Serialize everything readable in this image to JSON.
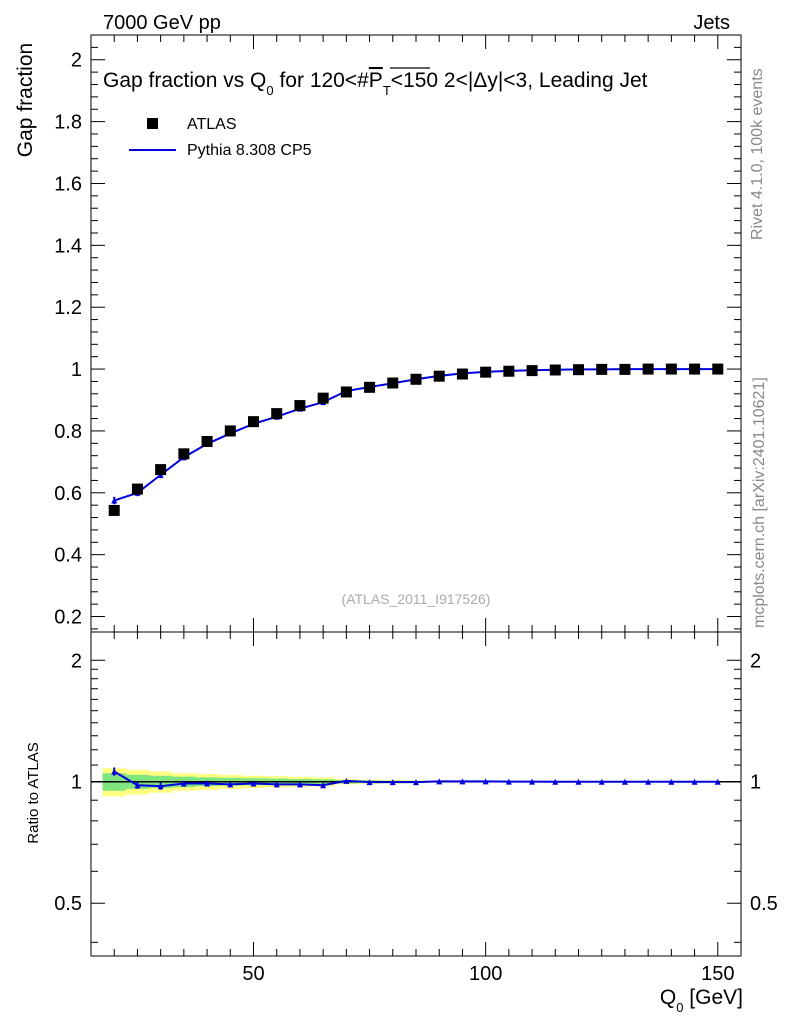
{
  "header": {
    "left": "7000 GeV pp",
    "right": "Jets"
  },
  "side": {
    "rivet": "Rivet 4.1.0,  100k events",
    "mcplots": "mcplots.cern.ch [arXiv:2401.10621]"
  },
  "colors": {
    "data": "#000000",
    "mc": "#0000dd",
    "band_inner": "#7fe57f",
    "band_outer": "#ffff80"
  },
  "chart_data": [
    {
      "type": "scatter",
      "panel": "main",
      "title": "Gap fraction vs Q₀ for 120<#P̅T<150  2<|Δy|<3, Leading Jet",
      "title_parts": [
        "Gap fraction vs Q",
        "0",
        " for 120<#",
        "P",
        "T",
        "<150  2<|Δy|<3, Leading Jet"
      ],
      "ylabel": "Gap fraction",
      "xlim": [
        15,
        155
      ],
      "ylim": [
        0.15,
        2.08
      ],
      "yticks": [
        0.2,
        0.4,
        0.6,
        0.8,
        1,
        1.2,
        1.4,
        1.6,
        1.8,
        2
      ],
      "ytick_labels": [
        "0.2",
        "0.4",
        "0.6",
        "0.8",
        "1",
        "1.2",
        "1.4",
        "1.6",
        "1.8",
        "2"
      ],
      "annotation": "(ATLAS_2011_I917526)",
      "legend": [
        "ATLAS",
        "Pythia 8.308 CP5"
      ],
      "legend_position": "top-left",
      "x": [
        20,
        25,
        30,
        35,
        40,
        45,
        50,
        55,
        60,
        65,
        70,
        75,
        80,
        85,
        90,
        95,
        100,
        105,
        110,
        115,
        120,
        125,
        130,
        135,
        140,
        145,
        150
      ],
      "series": [
        {
          "name": "ATLAS",
          "values": [
            0.543,
            0.612,
            0.675,
            0.726,
            0.766,
            0.8,
            0.83,
            0.856,
            0.882,
            0.906,
            0.926,
            0.941,
            0.955,
            0.967,
            0.977,
            0.984,
            0.99,
            0.993,
            0.995,
            0.997,
            0.998,
            0.999,
            0.999,
            1.0,
            1.0,
            1.0,
            1.0
          ]
        },
        {
          "name": "Pythia 8.308 CP5",
          "values": [
            0.575,
            0.6,
            0.658,
            0.715,
            0.758,
            0.792,
            0.823,
            0.846,
            0.872,
            0.893,
            0.929,
            0.942,
            0.954,
            0.967,
            0.978,
            0.986,
            0.991,
            0.994,
            0.996,
            0.998,
            0.999,
            0.999,
            1.0,
            1.0,
            1.0,
            1.0,
            1.0
          ],
          "errors": [
            0.012,
            0.011,
            0.011,
            0.01,
            0.009,
            0.009,
            0.008,
            0.008,
            0.007,
            0.007,
            0.005,
            0.005,
            0.004,
            0.004,
            0.003,
            0.003,
            0.002,
            0.002,
            0.001,
            0.001,
            0.001,
            0.001,
            0.0,
            0.0,
            0.0,
            0.0,
            0.0
          ]
        }
      ]
    },
    {
      "type": "line",
      "panel": "ratio",
      "ylabel": "Ratio to ATLAS",
      "xlabel": "Q₀ [GeV]",
      "xlabel_parts": [
        "Q",
        "0",
        " [GeV]"
      ],
      "xlim": [
        15,
        155
      ],
      "ylim": [
        0.37,
        2.35
      ],
      "scale": "log",
      "yticks": [
        0.5,
        1,
        2
      ],
      "ytick_labels": [
        "0.5",
        "1",
        "2"
      ],
      "xticks": [
        50,
        100,
        150
      ],
      "xtick_labels": [
        "50",
        "100",
        "150"
      ],
      "x": [
        20,
        25,
        30,
        35,
        40,
        45,
        50,
        55,
        60,
        65,
        70,
        75,
        80,
        85,
        90,
        95,
        100,
        105,
        110,
        115,
        120,
        125,
        130,
        135,
        140,
        145,
        150
      ],
      "band_inner": [
        0.05,
        0.04,
        0.035,
        0.03,
        0.025,
        0.022,
        0.02,
        0.018,
        0.016,
        0.014,
        0.01,
        0.008,
        0.006,
        0.005,
        0.004,
        0.003,
        0.002,
        0.002,
        0.001,
        0.001,
        0.001,
        0.001,
        0.0,
        0.0,
        0.0,
        0.0,
        0.0
      ],
      "band_outer": [
        0.08,
        0.07,
        0.06,
        0.05,
        0.045,
        0.04,
        0.035,
        0.032,
        0.028,
        0.025,
        0.015,
        0.012,
        0.01,
        0.008,
        0.006,
        0.005,
        0.004,
        0.003,
        0.002,
        0.002,
        0.001,
        0.001,
        0.001,
        0.0,
        0.0,
        0.0,
        0.0
      ],
      "series": [
        {
          "name": "Pythia 8.308 CP5 / ATLAS",
          "values": [
            1.06,
            0.98,
            0.975,
            0.99,
            0.99,
            0.985,
            0.99,
            0.985,
            0.985,
            0.98,
            1.005,
            0.998,
            0.998,
            0.998,
            1.002,
            1.002,
            1.002,
            1.001,
            1.001,
            1.0,
            1.0,
            1.0,
            1.0,
            1.0,
            1.0,
            1.0,
            1.0
          ],
          "errors": [
            0.025,
            0.02,
            0.02,
            0.015,
            0.015,
            0.013,
            0.012,
            0.011,
            0.01,
            0.01,
            0.006,
            0.005,
            0.005,
            0.004,
            0.004,
            0.003,
            0.002,
            0.002,
            0.001,
            0.001,
            0.001,
            0.001,
            0.0,
            0.0,
            0.0,
            0.0,
            0.0
          ]
        }
      ]
    }
  ]
}
